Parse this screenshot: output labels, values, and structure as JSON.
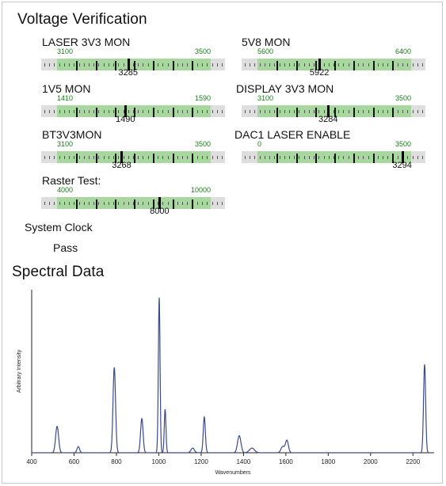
{
  "voltage": {
    "title": "Voltage Verification",
    "gauges": [
      {
        "label": "LASER 3V3 MON",
        "min": "3100",
        "max": "3500",
        "min_v": 3100,
        "max_v": 3500,
        "value": "3285",
        "value_v": 3285
      },
      {
        "label": "5V8 MON",
        "min": "5600",
        "max": "6400",
        "min_v": 5600,
        "max_v": 6400,
        "value": "5922",
        "value_v": 5922
      },
      {
        "label": "1V5 MON",
        "min": "1410",
        "max": "1590",
        "min_v": 1410,
        "max_v": 1590,
        "value": "1490",
        "value_v": 1490
      },
      {
        "label": "DISPLAY 3V3 MON",
        "min": "3100",
        "max": "3500",
        "min_v": 3100,
        "max_v": 3500,
        "value": "3284",
        "value_v": 3284
      },
      {
        "label": "BT3V3MON",
        "min": "3100",
        "max": "3500",
        "min_v": 3100,
        "max_v": 3500,
        "value": "3268",
        "value_v": 3268
      },
      {
        "label": "DAC1 LASER ENABLE",
        "min": "0",
        "max": "3500",
        "min_v": 0,
        "max_v": 3500,
        "value": "3294",
        "value_v": 3294
      },
      {
        "label": "Raster Test:",
        "min": "4000",
        "max": "10000",
        "min_v": 4000,
        "max_v": 10000,
        "value": "8000",
        "value_v": 8000
      }
    ],
    "system_clock_label": "System Clock",
    "system_clock_status": "Pass"
  },
  "spectral": {
    "title": "Spectral Data"
  },
  "chart_data": {
    "type": "line",
    "title": "Spectral Data",
    "xlabel": "Wavenumbers",
    "ylabel": "Arbitrary Intensity",
    "xlim": [
      400,
      2300
    ],
    "ylim": [
      0,
      1
    ],
    "xticks": [
      400,
      600,
      800,
      1000,
      1200,
      1400,
      1600,
      1800,
      2000,
      2200
    ],
    "line_color": "#3a4a8c",
    "peaks": [
      {
        "x": 520,
        "y": 0.17,
        "w": 7
      },
      {
        "x": 620,
        "y": 0.04,
        "w": 6
      },
      {
        "x": 790,
        "y": 0.55,
        "w": 6
      },
      {
        "x": 920,
        "y": 0.22,
        "w": 6
      },
      {
        "x": 1002,
        "y": 1.0,
        "w": 4
      },
      {
        "x": 1030,
        "y": 0.28,
        "w": 4
      },
      {
        "x": 1160,
        "y": 0.03,
        "w": 8
      },
      {
        "x": 1215,
        "y": 0.23,
        "w": 5
      },
      {
        "x": 1380,
        "y": 0.11,
        "w": 8
      },
      {
        "x": 1440,
        "y": 0.03,
        "w": 12
      },
      {
        "x": 1585,
        "y": 0.04,
        "w": 8
      },
      {
        "x": 1605,
        "y": 0.08,
        "w": 7
      },
      {
        "x": 2255,
        "y": 0.57,
        "w": 5
      }
    ]
  }
}
